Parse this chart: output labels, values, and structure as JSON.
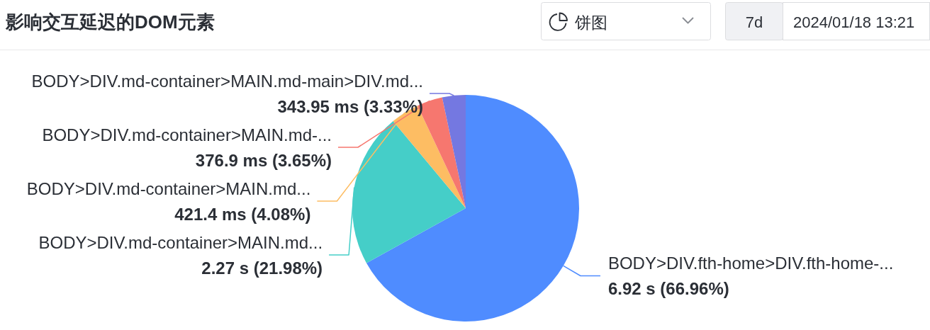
{
  "chart_data": {
    "type": "pie",
    "title": "影响交互延迟的DOM元素",
    "categories": [
      "BODY>DIV.fth-home>DIV.fth-home-...",
      "BODY>DIV.md-container>MAIN.md...",
      "BODY>DIV.md-container>MAIN.md...",
      "BODY>DIV.md-container>MAIN.md-...",
      "BODY>DIV.md-container>MAIN.md-main>DIV.md..."
    ],
    "values": [
      66.96,
      21.98,
      4.08,
      3.65,
      3.33
    ],
    "value_labels": [
      "6.92 s (66.96%)",
      "2.27 s (21.98%)",
      "421.4 ms (4.08%)",
      "376.9 ms (3.65%)",
      "343.95 ms (3.33%)"
    ],
    "colors": [
      "#4f8cff",
      "#45cec8",
      "#fdbd63",
      "#f6776f",
      "#7478e1"
    ],
    "annotations": [
      "饼图",
      "7d",
      "2024/01/18 13:21"
    ]
  }
}
